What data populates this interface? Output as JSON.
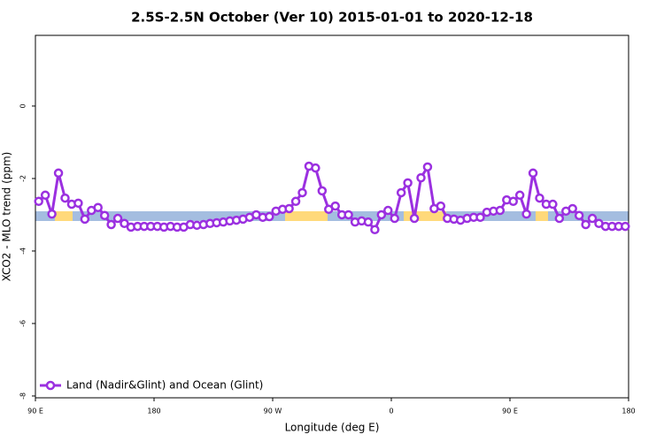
{
  "chart_data": {
    "type": "line",
    "title": "2.5S-2.5N October (Ver 10)   2015-01-01 to 2020-12-18",
    "xlabel": "Longitude (deg E)",
    "ylabel": "XCO2 - MLO trend (ppm)",
    "x": [
      92.5,
      97.5,
      102.5,
      107.5,
      112.5,
      117.5,
      122.5,
      127.5,
      132.5,
      137.5,
      142.5,
      147.5,
      152.5,
      157.5,
      162.5,
      167.5,
      172.5,
      177.5,
      182.5,
      187.5,
      192.5,
      197.5,
      202.5,
      207.5,
      212.5,
      217.5,
      222.5,
      227.5,
      232.5,
      237.5,
      242.5,
      247.5,
      252.5,
      257.5,
      262.5,
      267.5,
      272.5,
      277.5,
      282.5,
      287.5,
      292.5,
      297.5,
      302.5,
      307.5,
      312.5,
      317.5,
      322.5,
      327.5,
      332.5,
      337.5,
      342.5,
      347.5,
      352.5,
      357.5,
      362.5,
      367.5,
      372.5,
      377.5,
      382.5,
      387.5,
      392.5,
      397.5,
      402.5,
      407.5,
      412.5,
      417.5,
      422.5,
      427.5,
      432.5,
      437.5,
      442.5,
      447.5,
      452.5,
      457.5,
      462.5,
      467.5,
      472.5,
      477.5,
      482.5,
      487.5,
      492.5,
      497.5,
      502.5,
      507.5,
      512.5,
      517.5,
      522.5,
      527.5,
      532.5,
      537.5
    ],
    "series": [
      {
        "name": "Land (Nadir&Glint) and Ocean (Glint)",
        "color": "#9b30e0",
        "values": [
          -2.63,
          -2.46,
          -2.98,
          -1.85,
          -2.54,
          -2.71,
          -2.68,
          -3.12,
          -2.88,
          -2.8,
          -3.02,
          -3.27,
          -3.1,
          -3.24,
          -3.34,
          -3.32,
          -3.32,
          -3.32,
          -3.32,
          -3.34,
          -3.32,
          -3.34,
          -3.34,
          -3.27,
          -3.29,
          -3.27,
          -3.24,
          -3.22,
          -3.2,
          -3.17,
          -3.15,
          -3.12,
          -3.07,
          -3.0,
          -3.07,
          -3.05,
          -2.9,
          -2.85,
          -2.83,
          -2.63,
          -2.39,
          -1.66,
          -1.71,
          -2.34,
          -2.85,
          -2.76,
          -3.0,
          -3.0,
          -3.2,
          -3.17,
          -3.2,
          -3.41,
          -3.0,
          -2.88,
          -3.1,
          -2.39,
          -2.12,
          -3.1,
          -1.98,
          -1.68,
          -2.83,
          -2.76,
          -3.1,
          -3.12,
          -3.15,
          -3.1,
          -3.07,
          -3.07,
          -2.93,
          -2.9,
          -2.88,
          -2.59,
          -2.63,
          -2.46,
          -2.98,
          -1.85,
          -2.54,
          -2.71,
          -2.71,
          -3.1,
          -2.9,
          -2.83,
          -3.02,
          -3.27,
          -3.1,
          -3.24,
          -3.32,
          -3.32,
          -3.32,
          -3.32
        ]
      }
    ],
    "xlim": [
      90,
      540
    ],
    "xticks": [
      {
        "value": 90,
        "label": "90 E"
      },
      {
        "value": 180,
        "label": "180"
      },
      {
        "value": 270,
        "label": "90 W"
      },
      {
        "value": 360,
        "label": "0"
      },
      {
        "value": 450,
        "label": "90 E"
      },
      {
        "value": 540,
        "label": "180"
      }
    ],
    "ylim": [
      -8.05,
      1.95
    ],
    "yticks": [
      0,
      -2,
      -4,
      -6,
      -8
    ],
    "legend": "bottom-left"
  }
}
